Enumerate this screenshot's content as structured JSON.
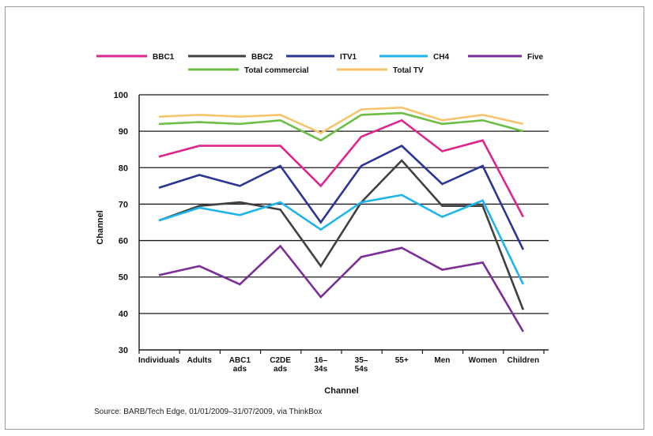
{
  "source": "Source: BARB/Tech Edge, 01/01/2009–31/07/2009, via ThinkBox",
  "chart_data": {
    "type": "line",
    "title": "",
    "xlabel": "Channel",
    "ylabel": "Channel",
    "ylim": [
      30,
      100
    ],
    "yticks": [
      30,
      40,
      50,
      60,
      70,
      80,
      90,
      100
    ],
    "grid": "horizontal",
    "legend_position": "top",
    "categories": [
      [
        "Individuals"
      ],
      [
        "Adults"
      ],
      [
        "ABC1",
        "ads"
      ],
      [
        "C2DE",
        "ads"
      ],
      [
        "16–",
        "34s"
      ],
      [
        "35–",
        "54s"
      ],
      [
        "55+"
      ],
      [
        "Men"
      ],
      [
        "Women"
      ],
      [
        "Children"
      ]
    ],
    "series": [
      {
        "name": "BBC1",
        "color": "#e0238f",
        "values": [
          83,
          86,
          86,
          86,
          75,
          88.5,
          93,
          84.5,
          87.5,
          66.5
        ]
      },
      {
        "name": "BBC2",
        "color": "#404040",
        "values": [
          65.5,
          69.5,
          70.5,
          68.5,
          53,
          70.5,
          82,
          69.5,
          69.5,
          41
        ]
      },
      {
        "name": "ITV1",
        "color": "#2b3596",
        "values": [
          74.5,
          78,
          75,
          80.5,
          65,
          80.5,
          86,
          75.5,
          80.5,
          57.5
        ]
      },
      {
        "name": "CH4",
        "color": "#1eb4ec",
        "values": [
          65.5,
          69,
          67,
          70.5,
          63,
          70.5,
          72.5,
          66.5,
          71,
          48
        ]
      },
      {
        "name": "Five",
        "color": "#7b2d99",
        "values": [
          50.5,
          53,
          48,
          58.5,
          44.5,
          55.5,
          58,
          52,
          54,
          35
        ]
      },
      {
        "name": "Total commercial",
        "color": "#6dbe45",
        "values": [
          92,
          92.5,
          92,
          93,
          87.5,
          94.5,
          95,
          92,
          93,
          90
        ]
      },
      {
        "name": "Total TV",
        "color": "#f7c46c",
        "values": [
          94,
          94.5,
          94,
          94.5,
          89.5,
          96,
          96.5,
          93,
          94.5,
          92
        ]
      }
    ]
  }
}
